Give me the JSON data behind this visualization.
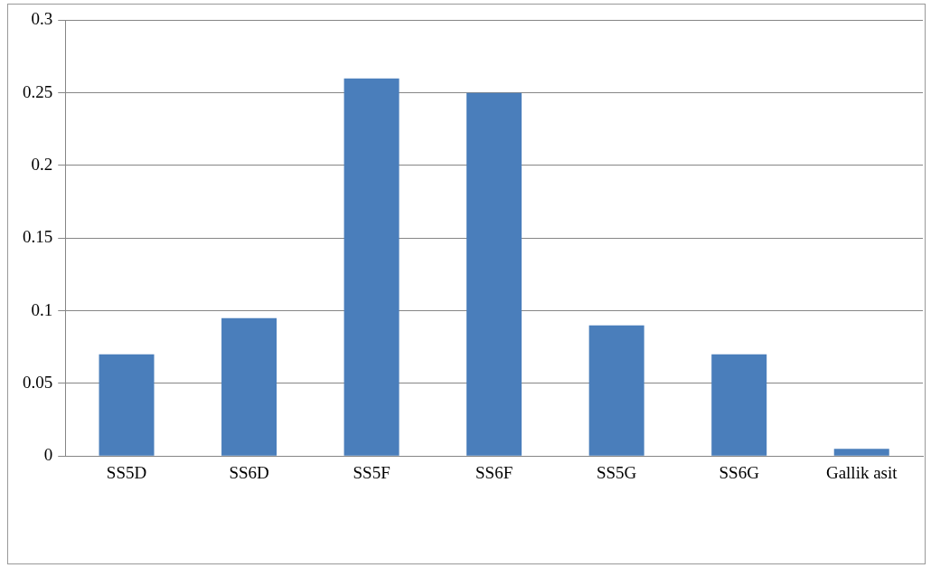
{
  "chart_data": {
    "type": "bar",
    "categories": [
      "SS5D",
      "SS6D",
      "SS5F",
      "SS6F",
      "SS5G",
      "SS6G",
      "Gallik asit"
    ],
    "values": [
      0.07,
      0.095,
      0.26,
      0.25,
      0.09,
      0.07,
      0.005
    ],
    "color": "#4a7ebb",
    "ylim": [
      0,
      0.3
    ],
    "yticks": [
      0,
      0.05,
      0.1,
      0.15,
      0.2,
      0.25,
      0.3
    ],
    "grid": "y",
    "legend": false
  }
}
